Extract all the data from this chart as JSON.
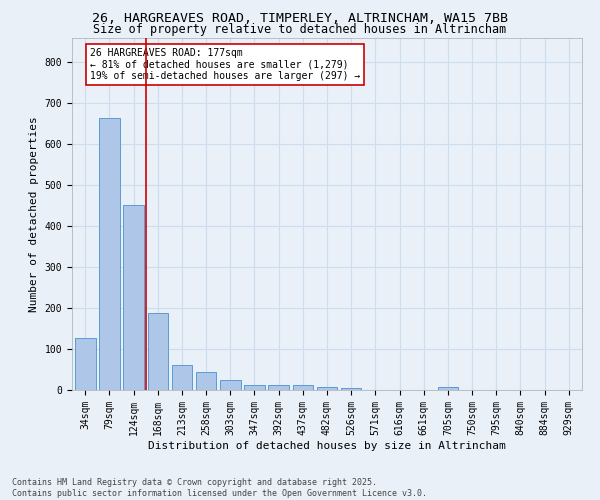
{
  "title_line1": "26, HARGREAVES ROAD, TIMPERLEY, ALTRINCHAM, WA15 7BB",
  "title_line2": "Size of property relative to detached houses in Altrincham",
  "xlabel": "Distribution of detached houses by size in Altrincham",
  "ylabel": "Number of detached properties",
  "categories": [
    "34sqm",
    "79sqm",
    "124sqm",
    "168sqm",
    "213sqm",
    "258sqm",
    "303sqm",
    "347sqm",
    "392sqm",
    "437sqm",
    "482sqm",
    "526sqm",
    "571sqm",
    "616sqm",
    "661sqm",
    "705sqm",
    "750sqm",
    "795sqm",
    "840sqm",
    "884sqm",
    "929sqm"
  ],
  "values": [
    127,
    663,
    452,
    188,
    62,
    43,
    25,
    12,
    13,
    11,
    8,
    5,
    0,
    0,
    0,
    7,
    0,
    0,
    0,
    0,
    0
  ],
  "bar_color": "#aec6e8",
  "bar_edge_color": "#5b9bd5",
  "red_line_x": 2.5,
  "annotation_text_lines": [
    "26 HARGREAVES ROAD: 177sqm",
    "← 81% of detached houses are smaller (1,279)",
    "19% of semi-detached houses are larger (297) →"
  ],
  "annotation_box_color": "#ffffff",
  "annotation_box_edge": "#cc0000",
  "vline_color": "#cc0000",
  "ylim": [
    0,
    860
  ],
  "yticks": [
    0,
    100,
    200,
    300,
    400,
    500,
    600,
    700,
    800
  ],
  "grid_color": "#ccddee",
  "background_color": "#eaf0f8",
  "footer_line1": "Contains HM Land Registry data © Crown copyright and database right 2025.",
  "footer_line2": "Contains public sector information licensed under the Open Government Licence v3.0.",
  "title_fontsize": 9.5,
  "subtitle_fontsize": 8.5,
  "tick_fontsize": 7,
  "ylabel_fontsize": 8,
  "xlabel_fontsize": 8,
  "annot_fontsize": 7,
  "footer_fontsize": 6
}
